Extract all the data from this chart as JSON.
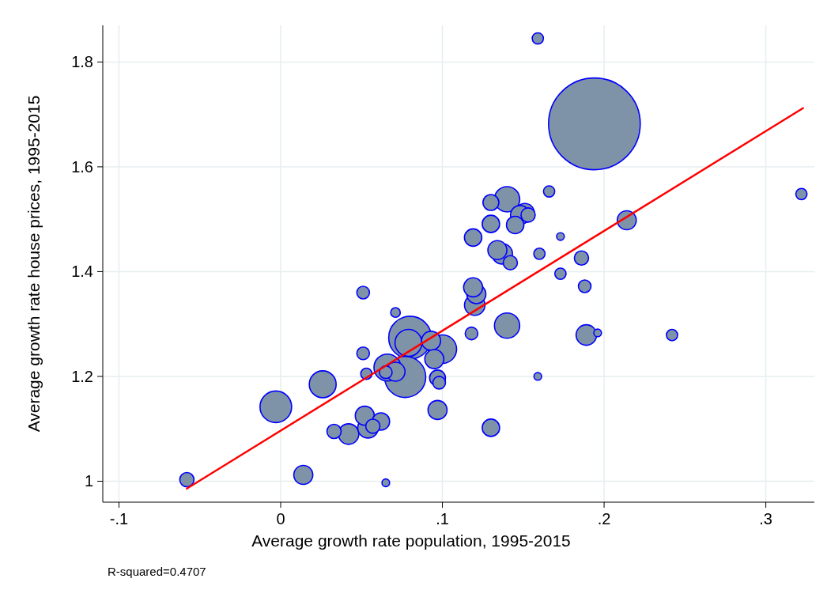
{
  "chart_data": {
    "type": "bubble",
    "xlabel": "Average growth rate population, 1995-2015",
    "ylabel": "Average growth rate house prices, 1995-2015",
    "xlim": [
      -0.11,
      0.33
    ],
    "ylim": [
      0.96,
      1.87
    ],
    "xticks": [
      {
        "value": -0.1,
        "label": "-.1"
      },
      0,
      {
        "value": 0.1,
        "label": ".1"
      },
      {
        "value": 0.2,
        "label": ".2"
      },
      {
        "value": 0.3,
        "label": ".3"
      }
    ],
    "yticks": [
      1,
      1.2,
      1.4,
      1.6,
      1.8
    ],
    "grid": true,
    "annotations": [
      "R-squared=0.4707"
    ],
    "series": [
      {
        "color": "#7f93a8",
        "x": [
          -0.058,
          -0.003,
          0.014,
          0.026,
          0.033,
          0.042,
          0.052,
          0.054,
          0.057,
          0.062,
          0.065,
          0.051,
          0.051,
          0.053,
          0.066,
          0.071,
          0.065,
          0.071,
          0.077,
          0.08,
          0.079,
          0.093,
          0.1,
          0.095,
          0.097,
          0.098,
          0.097,
          0.118,
          0.14,
          0.12,
          0.121,
          0.119,
          0.13,
          0.159,
          0.119,
          0.13,
          0.14,
          0.151,
          0.153,
          0.148,
          0.145,
          0.13,
          0.166,
          0.173,
          0.134,
          0.137,
          0.142,
          0.16,
          0.186,
          0.173,
          0.188,
          0.214,
          0.189,
          0.196,
          0.194,
          0.322,
          0.242,
          0.159
        ],
        "values": [
          1.003,
          1.142,
          1.012,
          1.185,
          1.095,
          1.09,
          1.125,
          1.102,
          1.105,
          1.114,
          0.997,
          1.36,
          1.244,
          1.205,
          1.217,
          1.209,
          1.208,
          1.322,
          1.199,
          1.274,
          1.264,
          1.268,
          1.252,
          1.233,
          1.197,
          1.188,
          1.136,
          1.282,
          1.297,
          1.336,
          1.357,
          1.37,
          1.102,
          1.2,
          1.465,
          1.532,
          1.538,
          1.512,
          1.508,
          1.508,
          1.489,
          1.491,
          1.553,
          1.467,
          1.441,
          1.434,
          1.417,
          1.434,
          1.426,
          1.396,
          1.372,
          1.498,
          1.279,
          1.283,
          1.682,
          1.548,
          1.279,
          1.845
        ],
        "sizes": [
          0.024,
          0.119,
          0.043,
          0.086,
          0.024,
          0.05,
          0.043,
          0.05,
          0.024,
          0.036,
          0.007,
          0.019,
          0.019,
          0.015,
          0.086,
          0.043,
          0.019,
          0.011,
          0.201,
          0.217,
          0.086,
          0.043,
          0.096,
          0.043,
          0.03,
          0.019,
          0.043,
          0.019,
          0.076,
          0.05,
          0.043,
          0.043,
          0.036,
          0.007,
          0.036,
          0.03,
          0.076,
          0.043,
          0.024,
          0.043,
          0.036,
          0.036,
          0.015,
          0.007,
          0.043,
          0.05,
          0.024,
          0.015,
          0.024,
          0.015,
          0.019,
          0.043,
          0.05,
          0.007,
          1,
          0.015,
          0.015,
          0.015
        ]
      },
      {
        "type": "line",
        "color": "#ff0000",
        "x": [
          -0.058,
          0.323
        ],
        "values": [
          0.986,
          1.712
        ]
      }
    ]
  }
}
